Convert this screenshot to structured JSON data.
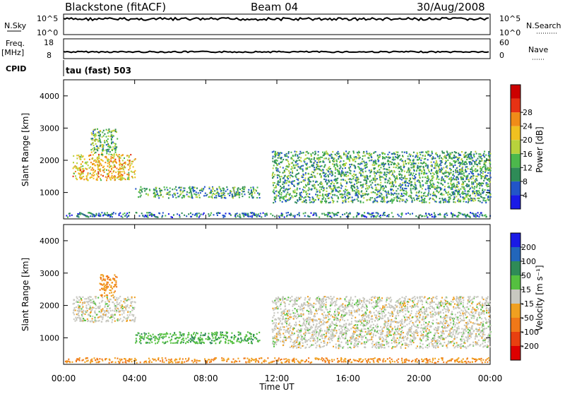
{
  "header": {
    "radar": "Blackstone (fitACF)",
    "beam": "Beam 04",
    "date": "30/Aug/2008"
  },
  "strips": {
    "nsky_label": "N.Sky",
    "nsky_ticks": [
      "10^5",
      "10^0"
    ],
    "nsearch_label": "N.Search",
    "nsearch_ticks": [
      "10^5",
      "10^0"
    ],
    "freq_label": "Freq.",
    "freq_unit": "[MHz]",
    "freq_ticks": [
      "18",
      "8"
    ],
    "nave_label": "Nave",
    "nave_ticks": [
      "60",
      "0"
    ],
    "cpid_label": "CPID",
    "cpid_text": "tau (fast) 503"
  },
  "axes": {
    "xlabel": "Time UT",
    "xticks": [
      "00:00",
      "04:00",
      "08:00",
      "12:00",
      "16:00",
      "20:00",
      "00:00"
    ],
    "ylabel": "Slant Range [km]",
    "yticks": [
      "1000",
      "2000",
      "3000",
      "4000"
    ]
  },
  "colorbars": {
    "power": {
      "label": "Power [dB]",
      "ticks": [
        "4",
        "8",
        "12",
        "16",
        "20",
        "24",
        "28"
      ],
      "colors": [
        "#1a1ae6",
        "#2255c8",
        "#2e8b57",
        "#4cb84c",
        "#b8d23c",
        "#f0c020",
        "#f08c18",
        "#e63214",
        "#cc0000"
      ]
    },
    "velocity": {
      "label": "Velocity [m s⁻¹]",
      "ticks": [
        "200",
        "100",
        "50",
        "15",
        "-15",
        "-50",
        "-100",
        "-200"
      ],
      "colors": [
        "#1a1ae6",
        "#2266bb",
        "#2e8b57",
        "#55c040",
        "#c8c8c0",
        "#f0a020",
        "#f07818",
        "#e84010",
        "#dd0000"
      ]
    }
  },
  "chart_data": [
    {
      "type": "heatmap",
      "title": "Power",
      "x_range_hours": [
        0,
        24
      ],
      "ylim": [
        180,
        4500
      ],
      "zlabel": "Power [dB]",
      "regions": [
        {
          "t": [
            0.5,
            4.0
          ],
          "r": [
            1400,
            2200
          ],
          "value": 20
        },
        {
          "t": [
            1.5,
            3.0
          ],
          "r": [
            2200,
            3000
          ],
          "value": 12
        },
        {
          "t": [
            4.0,
            11.0
          ],
          "r": [
            850,
            1200
          ],
          "value": 10
        },
        {
          "t": [
            11.7,
            24.0
          ],
          "r": [
            700,
            2300
          ],
          "value": 10
        },
        {
          "t": [
            0.0,
            24.0
          ],
          "r": [
            250,
            400
          ],
          "value": 6
        }
      ]
    },
    {
      "type": "heatmap",
      "title": "Velocity",
      "x_range_hours": [
        0,
        24
      ],
      "ylim": [
        180,
        4500
      ],
      "zlabel": "Velocity [m s^-1]",
      "regions": [
        {
          "t": [
            0.5,
            4.0
          ],
          "r": [
            1500,
            2300
          ],
          "value": 0
        },
        {
          "t": [
            2.0,
            3.0
          ],
          "r": [
            2300,
            3000
          ],
          "value": -50
        },
        {
          "t": [
            4.0,
            11.0
          ],
          "r": [
            850,
            1200
          ],
          "value": 40
        },
        {
          "t": [
            11.7,
            24.0
          ],
          "r": [
            700,
            2300
          ],
          "value": 0
        },
        {
          "t": [
            0.0,
            24.0
          ],
          "r": [
            250,
            400
          ],
          "value": -50
        }
      ]
    }
  ]
}
